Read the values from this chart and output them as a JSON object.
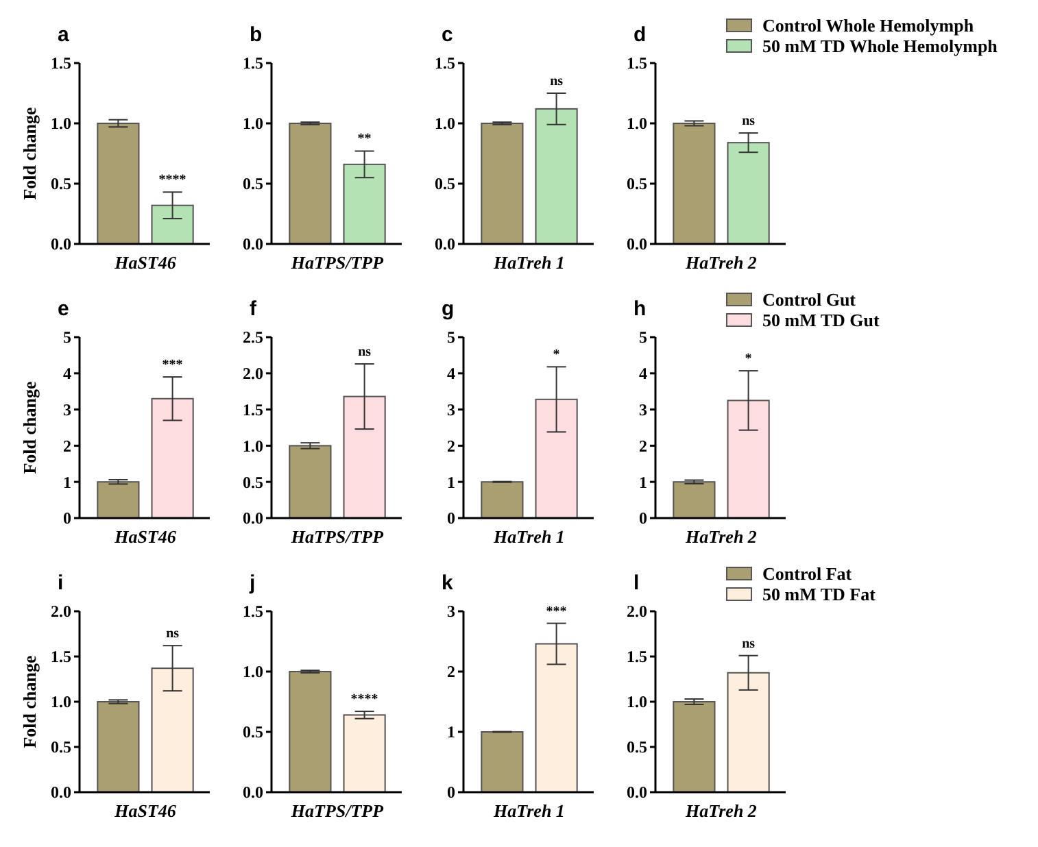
{
  "chart_data": [
    {
      "type": "bar",
      "title": "a",
      "xlabel": "HaST46",
      "ylabel": "Fold change",
      "categories": [
        null
      ],
      "ylim": [
        0,
        1.5
      ],
      "yticks": [
        {
          "value": 0,
          "label": "0.0"
        },
        {
          "value": 0.5,
          "label": "0.5"
        },
        {
          "value": 1,
          "label": "1.0"
        },
        {
          "value": 1.5,
          "label": "1.5"
        }
      ],
      "annotations": [
        "****"
      ],
      "series": [
        {
          "color": "#aa9f70",
          "values": [
            1.0
          ],
          "errors": [
            0.03
          ]
        },
        {
          "color": "#b5e2b5",
          "values": [
            0.32
          ],
          "errors": [
            0.11
          ]
        }
      ]
    },
    {
      "type": "bar",
      "title": "b",
      "xlabel": "HaTPS/TPP",
      "categories": [
        null
      ],
      "ylim": [
        0,
        1.5
      ],
      "yticks": [
        {
          "value": 0,
          "label": "0.0"
        },
        {
          "value": 0.5,
          "label": "0.5"
        },
        {
          "value": 1,
          "label": "1.0"
        },
        {
          "value": 1.5,
          "label": "1.5"
        }
      ],
      "annotations": [
        "**"
      ],
      "series": [
        {
          "color": "#aa9f70",
          "values": [
            1.0
          ],
          "errors": [
            0.01
          ]
        },
        {
          "color": "#b5e2b5",
          "values": [
            0.66
          ],
          "errors": [
            0.11
          ]
        }
      ]
    },
    {
      "type": "bar",
      "title": "c",
      "xlabel": "HaTreh 1",
      "categories": [
        null
      ],
      "ylim": [
        0,
        1.5
      ],
      "yticks": [
        {
          "value": 0,
          "label": "0.0"
        },
        {
          "value": 0.5,
          "label": "0.5"
        },
        {
          "value": 1,
          "label": "1.0"
        },
        {
          "value": 1.5,
          "label": "1.5"
        }
      ],
      "annotations": [
        "ns"
      ],
      "series": [
        {
          "color": "#aa9f70",
          "values": [
            1.0
          ],
          "errors": [
            0.01
          ]
        },
        {
          "color": "#b5e2b5",
          "values": [
            1.12
          ],
          "errors": [
            0.13
          ]
        }
      ]
    },
    {
      "type": "bar",
      "title": "d",
      "xlabel": "HaTreh 2",
      "categories": [
        null
      ],
      "ylim": [
        0,
        1.5
      ],
      "yticks": [
        {
          "value": 0,
          "label": "0.0"
        },
        {
          "value": 0.5,
          "label": "0.5"
        },
        {
          "value": 1,
          "label": "1.0"
        },
        {
          "value": 1.5,
          "label": "1.5"
        }
      ],
      "annotations": [
        "ns"
      ],
      "legend": "top right",
      "series": [
        {
          "name": "Control Whole Hemolymph",
          "color": "#aa9f70",
          "values": [
            1.0
          ],
          "errors": [
            0.02
          ]
        },
        {
          "name": "50 mM TD Whole Hemolymph",
          "color": "#b5e2b5",
          "values": [
            0.84
          ],
          "errors": [
            0.08
          ]
        }
      ]
    },
    {
      "type": "bar",
      "title": "e",
      "xlabel": "HaST46",
      "ylabel": "Fold change",
      "categories": [
        null
      ],
      "ylim": [
        0,
        5
      ],
      "yticks": [
        0,
        1,
        2,
        3,
        4,
        5
      ],
      "annotations": [
        "***"
      ],
      "series": [
        {
          "color": "#aa9f70",
          "values": [
            1.0
          ],
          "errors": [
            0.06
          ]
        },
        {
          "color": "#fddde0",
          "values": [
            3.3
          ],
          "errors": [
            0.6
          ]
        }
      ]
    },
    {
      "type": "bar",
      "title": "f",
      "xlabel": "HaTPS/TPP",
      "categories": [
        null
      ],
      "ylim": [
        0,
        2.5
      ],
      "yticks": [
        {
          "value": 0,
          "label": "0.0"
        },
        {
          "value": 0.5,
          "label": "0.5"
        },
        {
          "value": 1,
          "label": "1.0"
        },
        {
          "value": 1.5,
          "label": "1.5"
        },
        {
          "value": 2,
          "label": "2.0"
        },
        {
          "value": 2.5,
          "label": "2.5"
        }
      ],
      "annotations": [
        "ns"
      ],
      "series": [
        {
          "color": "#aa9f70",
          "values": [
            1.0
          ],
          "errors": [
            0.04
          ]
        },
        {
          "color": "#fddde0",
          "values": [
            1.68
          ],
          "errors": [
            0.45
          ]
        }
      ]
    },
    {
      "type": "bar",
      "title": "g",
      "xlabel": "HaTreh 1",
      "categories": [
        null
      ],
      "ylim": [
        0,
        5
      ],
      "yticks": [
        0,
        1,
        2,
        3,
        4,
        5
      ],
      "annotations": [
        "*"
      ],
      "series": [
        {
          "color": "#aa9f70",
          "values": [
            1.0
          ],
          "errors": [
            0.01
          ]
        },
        {
          "color": "#fddde0",
          "values": [
            3.28
          ],
          "errors": [
            0.9
          ]
        }
      ]
    },
    {
      "type": "bar",
      "title": "h",
      "xlabel": "HaTreh 2",
      "categories": [
        null
      ],
      "ylim": [
        0,
        5
      ],
      "yticks": [
        0,
        1,
        2,
        3,
        4,
        5
      ],
      "annotations": [
        "*"
      ],
      "legend": "top right",
      "series": [
        {
          "name": "Control Gut",
          "color": "#aa9f70",
          "values": [
            1.0
          ],
          "errors": [
            0.05
          ]
        },
        {
          "name": "50 mM TD Gut",
          "color": "#fddde0",
          "values": [
            3.25
          ],
          "errors": [
            0.82
          ]
        }
      ]
    },
    {
      "type": "bar",
      "title": "i",
      "xlabel": "HaST46",
      "ylabel": "Fold change",
      "categories": [
        null
      ],
      "ylim": [
        0,
        2
      ],
      "yticks": [
        {
          "value": 0,
          "label": "0.0"
        },
        {
          "value": 0.5,
          "label": "0.5"
        },
        {
          "value": 1,
          "label": "1.0"
        },
        {
          "value": 1.5,
          "label": "1.5"
        },
        {
          "value": 2,
          "label": "2.0"
        }
      ],
      "annotations": [
        "ns"
      ],
      "series": [
        {
          "color": "#aa9f70",
          "values": [
            1.0
          ],
          "errors": [
            0.02
          ]
        },
        {
          "color": "#fdeede",
          "values": [
            1.37
          ],
          "errors": [
            0.25
          ]
        }
      ]
    },
    {
      "type": "bar",
      "title": "j",
      "xlabel": "HaTPS/TPP",
      "categories": [
        null
      ],
      "ylim": [
        0,
        1.5
      ],
      "yticks": [
        {
          "value": 0,
          "label": "0.0"
        },
        {
          "value": 0.5,
          "label": "0.5"
        },
        {
          "value": 1,
          "label": "1.0"
        },
        {
          "value": 1.5,
          "label": "1.5"
        }
      ],
      "annotations": [
        "****"
      ],
      "series": [
        {
          "color": "#aa9f70",
          "values": [
            1.0
          ],
          "errors": [
            0.01
          ]
        },
        {
          "color": "#fdeede",
          "values": [
            0.64
          ],
          "errors": [
            0.03
          ]
        }
      ]
    },
    {
      "type": "bar",
      "title": "k",
      "xlabel": "HaTreh 1",
      "categories": [
        null
      ],
      "ylim": [
        0,
        3
      ],
      "yticks": [
        0,
        1,
        2,
        3
      ],
      "annotations": [
        "***"
      ],
      "series": [
        {
          "color": "#aa9f70",
          "values": [
            1.0
          ],
          "errors": [
            0.005
          ]
        },
        {
          "color": "#fdeede",
          "values": [
            2.46
          ],
          "errors": [
            0.34
          ]
        }
      ]
    },
    {
      "type": "bar",
      "title": "l",
      "xlabel": "HaTreh 2",
      "categories": [
        null
      ],
      "ylim": [
        0,
        2
      ],
      "yticks": [
        {
          "value": 0,
          "label": "0.0"
        },
        {
          "value": 0.5,
          "label": "0.5"
        },
        {
          "value": 1,
          "label": "1.0"
        },
        {
          "value": 1.5,
          "label": "1.5"
        },
        {
          "value": 2,
          "label": "2.0"
        }
      ],
      "annotations": [
        "ns"
      ],
      "legend": "top right",
      "series": [
        {
          "name": "Control Fat",
          "color": "#aa9f70",
          "values": [
            1.0
          ],
          "errors": [
            0.03
          ]
        },
        {
          "name": "50 mM TD Fat",
          "color": "#fdeede",
          "values": [
            1.32
          ],
          "errors": [
            0.19
          ]
        }
      ]
    }
  ]
}
